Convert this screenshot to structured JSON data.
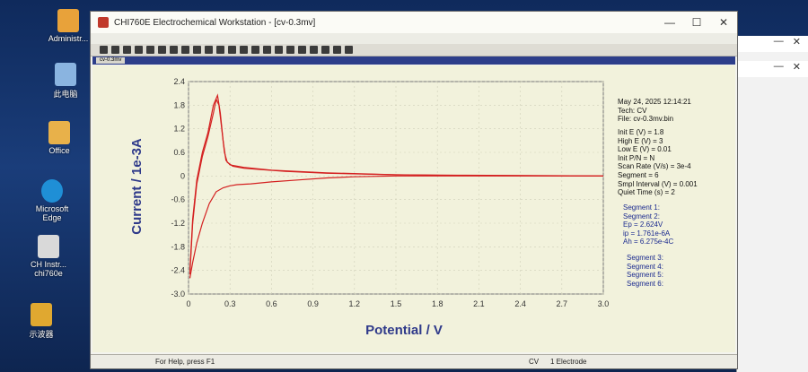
{
  "desktop": {
    "icons": [
      {
        "label": "Administr..."
      },
      {
        "label": "此电脑"
      },
      {
        "label": "Office"
      },
      {
        "label": "Microsoft Edge"
      },
      {
        "label": "CH Instr... chi760e"
      },
      {
        "label": "示波器"
      }
    ]
  },
  "window": {
    "title": "CHI760E Electrochemical Workstation - [cv-0.3mv]",
    "minimize": "—",
    "maximize": "☐",
    "close": "✕",
    "mdi_tab": "cv-0.3mv"
  },
  "info": {
    "date": "May 24, 2025   12:14:21",
    "tech": "Tech: CV",
    "file": "File: cv-0.3mv.bin",
    "params": [
      "Init E (V) = 1.8",
      "High E (V) = 3",
      "Low E (V) = 0.01",
      "Init P/N = N",
      "Scan Rate (V/s) = 3e-4",
      "Segment = 6",
      "Smpl Interval (V) = 0.001",
      "Quiet Time (s) = 2"
    ],
    "segments_a": [
      "Segment 1:",
      "Segment 2:",
      "Ep = 2.624V",
      "ip = 1.761e-6A",
      "Ah = 6.275e-4C"
    ],
    "segments_b": [
      "Segment 3:",
      "Segment 4:",
      "Segment 5:",
      "Segment 6:"
    ]
  },
  "status": {
    "help": "For Help, press F1",
    "tech": "CV",
    "electrode": "1 Electrode"
  },
  "chart_data": {
    "type": "line",
    "xlabel": "Potential / V",
    "ylabel": "Current / 1e-3A",
    "xlim": [
      0,
      3.0
    ],
    "ylim": [
      -3.0,
      2.4
    ],
    "xticks": [
      "0",
      "0.3",
      "0.6",
      "0.9",
      "1.2",
      "1.5",
      "1.8",
      "2.1",
      "2.4",
      "2.7",
      "3.0"
    ],
    "yticks": [
      "2.4",
      "1.8",
      "1.2",
      "0.6",
      "0",
      "-0.6",
      "-1.2",
      "-1.8",
      "-2.4",
      "-3.0"
    ],
    "line_color": "#d42020",
    "series": [
      {
        "x": [
          0.01,
          0.03,
          0.06,
          0.1,
          0.14,
          0.18,
          0.2,
          0.22,
          0.24,
          0.26,
          0.28,
          0.32,
          0.4,
          0.5,
          0.7,
          1.0,
          1.5,
          2.0,
          2.5,
          3.0
        ],
        "y": [
          -2.5,
          -1.2,
          -0.2,
          0.5,
          1.0,
          1.6,
          1.95,
          1.8,
          1.2,
          0.6,
          0.35,
          0.25,
          0.2,
          0.17,
          0.12,
          0.07,
          0.03,
          0.02,
          0.01,
          0.0
        ]
      },
      {
        "x": [
          3.0,
          2.5,
          2.0,
          1.5,
          1.2,
          1.0,
          0.8,
          0.6,
          0.45,
          0.35,
          0.3,
          0.25,
          0.2,
          0.15,
          0.1,
          0.06,
          0.03,
          0.01
        ],
        "y": [
          0.0,
          0.0,
          0.0,
          0.0,
          -0.02,
          -0.05,
          -0.1,
          -0.15,
          -0.2,
          -0.22,
          -0.25,
          -0.3,
          -0.4,
          -0.7,
          -1.2,
          -1.7,
          -2.2,
          -2.6
        ]
      },
      {
        "x": [
          0.01,
          0.03,
          0.06,
          0.1,
          0.14,
          0.18,
          0.21,
          0.23,
          0.25,
          0.27,
          0.3,
          0.4,
          0.6,
          1.0,
          1.5,
          2.0,
          3.0
        ],
        "y": [
          -2.4,
          -1.1,
          -0.1,
          0.6,
          1.1,
          1.8,
          2.05,
          1.6,
          0.9,
          0.4,
          0.28,
          0.22,
          0.15,
          0.08,
          0.03,
          0.01,
          0.0
        ]
      }
    ]
  }
}
